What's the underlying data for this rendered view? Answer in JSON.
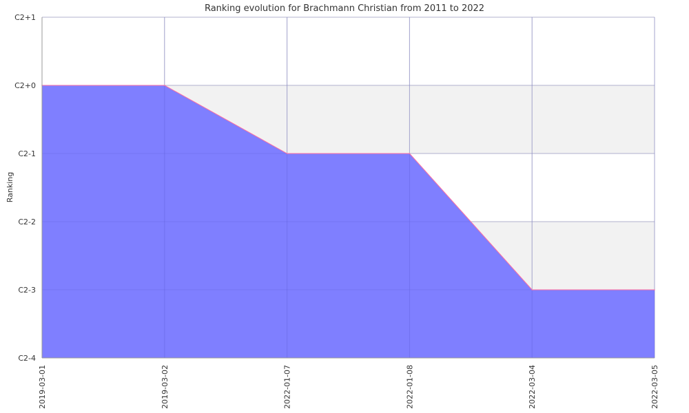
{
  "chart_data": {
    "type": "area",
    "title": "Ranking evolution for Brachmann Christian from 2011 to 2022",
    "xlabel": "",
    "ylabel": "Ranking",
    "x": [
      "2019-03-01",
      "2019-03-02",
      "2022-01-07",
      "2022-01-08",
      "2022-03-04",
      "2022-03-05"
    ],
    "y_categories": [
      "C2-4",
      "C2-3",
      "C2-2",
      "C2-1",
      "C2+0",
      "C2+1"
    ],
    "series": [
      {
        "values": [
          "C2+0",
          "C2+0",
          "C2-1",
          "C2-1",
          "C2-3",
          "C2-3"
        ]
      }
    ],
    "grid": true,
    "colors": {
      "fill": "#7f7fff",
      "line": "#ff6f9f",
      "band": "#f2f2f2",
      "grid": "#cccccc"
    }
  }
}
